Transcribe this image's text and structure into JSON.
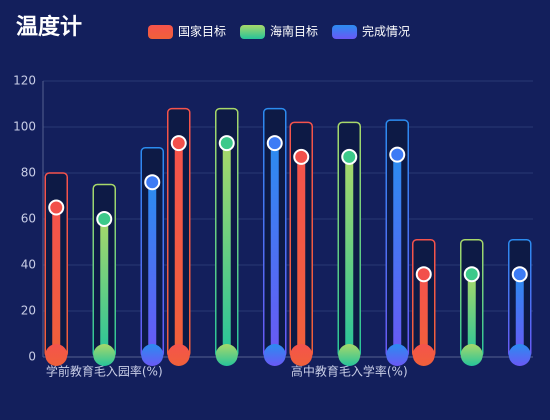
{
  "chart_data": {
    "type": "thermometer",
    "title": "温度计",
    "categories": [
      "学前教育毛入园率(%)",
      null,
      "高中教育毛入学率(%)",
      null
    ],
    "series": [
      {
        "name": "国家目标",
        "color": "#f2504b",
        "values": [
          65,
          93,
          87,
          36
        ]
      },
      {
        "name": "海南目标",
        "color": "#3cc98a",
        "values": [
          60,
          93,
          87,
          36
        ]
      },
      {
        "name": "完成情况",
        "color": "#3d7bf5",
        "values": [
          76,
          93,
          88,
          36
        ]
      }
    ],
    "ylim": [
      0,
      120
    ],
    "yticks": [
      0,
      20,
      40,
      60,
      80,
      100,
      120
    ],
    "grid": true
  }
}
